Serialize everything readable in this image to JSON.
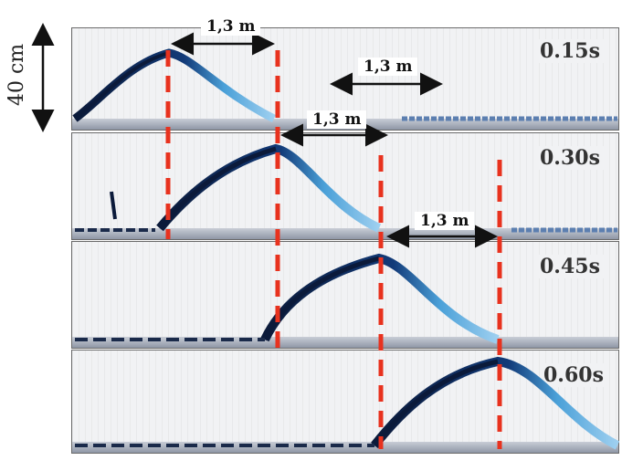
{
  "scale_label": "40 cm",
  "distance_label": "1,3 m",
  "time_labels": [
    "0.15s",
    "0.30s",
    "0.45s",
    "0.60s"
  ],
  "colors": {
    "marker_line": "#e8321e",
    "wave_dark": "#0b1a3a",
    "wave_light": "#4aa0d8",
    "frame_bg": "#f1f2f4"
  }
}
